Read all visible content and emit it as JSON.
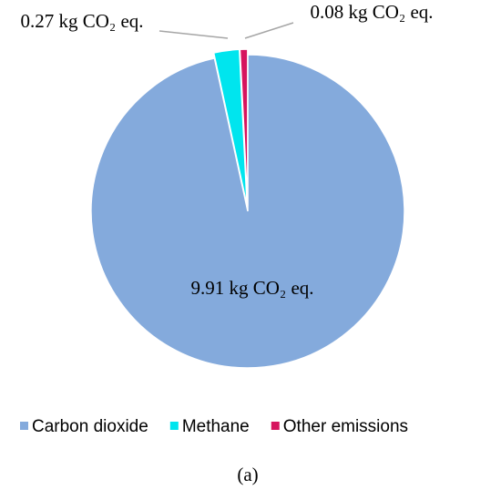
{
  "chart_data": {
    "type": "pie",
    "categories": [
      "Carbon dioxide",
      "Methane",
      "Other emissions"
    ],
    "values": [
      9.91,
      0.27,
      0.08
    ],
    "value_labels": [
      "9.91 kg CO₂ eq.",
      "0.27 kg CO₂ eq.",
      "0.08 kg CO₂ eq."
    ],
    "colors": [
      "#84aadc",
      "#00e5ee",
      "#d6145e"
    ],
    "legend": "bottom",
    "caption": "(a)"
  }
}
